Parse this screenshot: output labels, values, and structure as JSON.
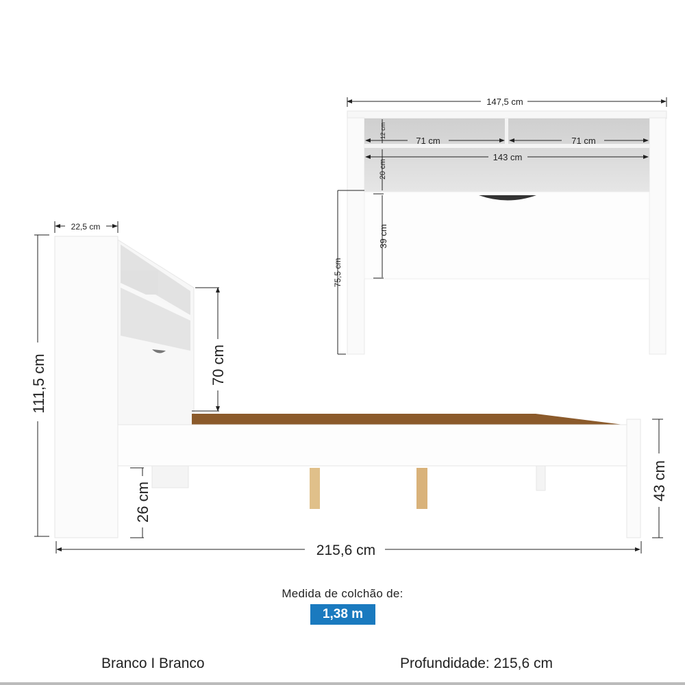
{
  "front_view": {
    "width_total": "147,5 cm",
    "niche_left_width": "71 cm",
    "niche_right_width": "71 cm",
    "inner_width": "143 cm",
    "niche_height": "12 cm",
    "shelf_height": "20 cm",
    "panel_height": "39 cm",
    "total_height": "75,5 cm"
  },
  "side_view": {
    "headboard_depth": "22,5 cm",
    "total_height": "111,5 cm",
    "headboard_above_base": "70 cm",
    "clearance_height": "26 cm",
    "foot_height": "43 cm",
    "total_length": "215,6 cm"
  },
  "colors": {
    "wood_base": "#8b5a2b",
    "slat": "#e0c08a",
    "badge": "#1a7abf"
  },
  "mattress": {
    "label": "Medida de colchão de:",
    "size": "1,38  m"
  },
  "footer": {
    "color": "Branco I Branco",
    "depth": "Profundidade: 215,6 cm"
  }
}
